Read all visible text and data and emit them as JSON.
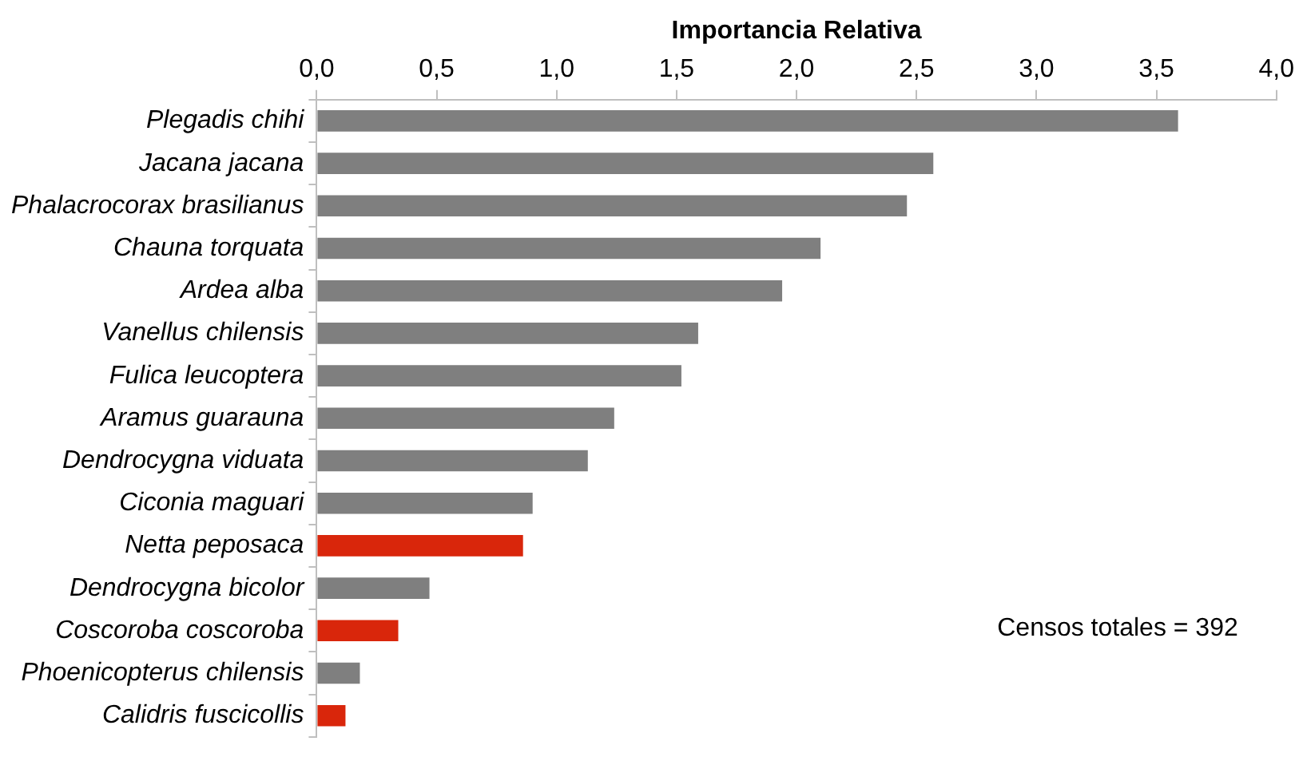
{
  "chart_data": {
    "type": "bar",
    "orientation": "horizontal",
    "xlabel": "Importancia Relativa",
    "categories": [
      "Plegadis chihi",
      "Jacana jacana",
      "Phalacrocorax brasilianus",
      "Chauna torquata",
      "Ardea alba",
      "Vanellus chilensis",
      "Fulica leucoptera",
      "Aramus guarauna",
      "Dendrocygna viduata",
      "Ciconia maguari",
      "Netta peposaca",
      "Dendrocygna bicolor",
      "Coscoroba coscoroba",
      "Phoenicopterus chilensis",
      "Calidris fuscicollis"
    ],
    "values": [
      3.59,
      2.57,
      2.46,
      2.1,
      1.94,
      1.59,
      1.52,
      1.24,
      1.13,
      0.9,
      0.86,
      0.47,
      0.34,
      0.18,
      0.12
    ],
    "colors": [
      "#7f7f7f",
      "#7f7f7f",
      "#7f7f7f",
      "#7f7f7f",
      "#7f7f7f",
      "#7f7f7f",
      "#7f7f7f",
      "#7f7f7f",
      "#7f7f7f",
      "#7f7f7f",
      "#d9260b",
      "#7f7f7f",
      "#d9260b",
      "#7f7f7f",
      "#d9260b"
    ],
    "xlim": [
      0,
      4
    ],
    "xticks": [
      {
        "value": 0,
        "label": "0,0"
      },
      {
        "value": 0.5,
        "label": "0,5"
      },
      {
        "value": 1,
        "label": "1,0"
      },
      {
        "value": 1.5,
        "label": "1,5"
      },
      {
        "value": 2,
        "label": "2,0"
      },
      {
        "value": 2.5,
        "label": "2,5"
      },
      {
        "value": 3,
        "label": "3,0"
      },
      {
        "value": 3.5,
        "label": "3,5"
      },
      {
        "value": 4,
        "label": "4,0"
      }
    ],
    "grid": false,
    "legend": false,
    "annotations": [
      "Censos totales = 392"
    ]
  }
}
